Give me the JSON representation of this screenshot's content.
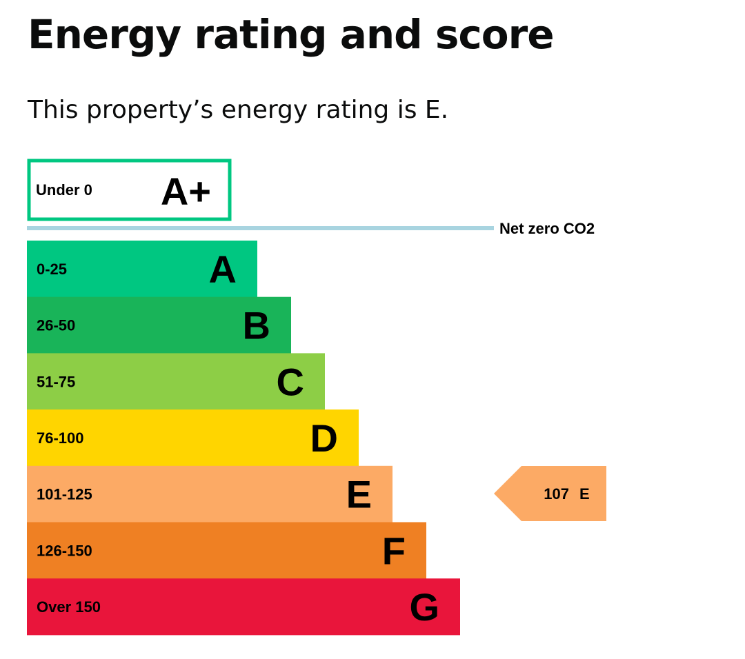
{
  "page": {
    "title": "Energy rating and score",
    "summary": "This property’s energy rating is E."
  },
  "chart_data": {
    "type": "bar",
    "title": "Energy rating and score",
    "orientation": "horizontal",
    "score_max": 175,
    "aplus_band": {
      "range": "Under 0",
      "letter": "A+",
      "outline_color": "#00c781"
    },
    "net_zero": {
      "label": "Net zero CO2",
      "line_color": "#a8d4e0"
    },
    "bands": [
      {
        "range": "0-25",
        "letter": "A",
        "max_score": 25,
        "color": "#00c781"
      },
      {
        "range": "26-50",
        "letter": "B",
        "max_score": 50,
        "color": "#19b459"
      },
      {
        "range": "51-75",
        "letter": "C",
        "max_score": 75,
        "color": "#8dce46"
      },
      {
        "range": "76-100",
        "letter": "D",
        "max_score": 100,
        "color": "#ffd500"
      },
      {
        "range": "101-125",
        "letter": "E",
        "max_score": 125,
        "color": "#fcaa65"
      },
      {
        "range": "126-150",
        "letter": "F",
        "max_score": 150,
        "color": "#ef8023"
      },
      {
        "range": "Over 150",
        "letter": "G",
        "max_score": 175,
        "color": "#e9153b"
      }
    ],
    "current": {
      "score": 107,
      "rating": "E",
      "color": "#fcaa65"
    }
  }
}
